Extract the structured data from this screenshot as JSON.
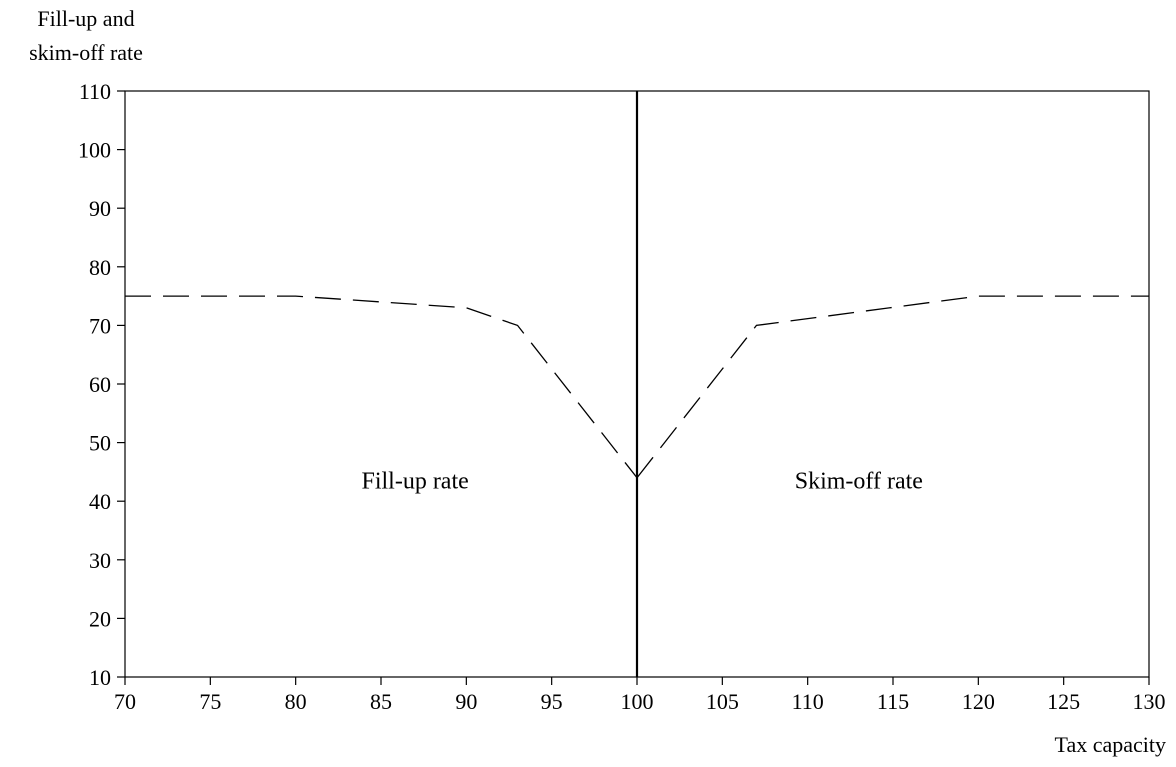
{
  "chart_data": {
    "type": "line",
    "ylabel_line1": "Fill-up and",
    "ylabel_line2": "skim-off  rate",
    "xlabel": "Tax capacity",
    "xlim": [
      70,
      130
    ],
    "ylim": [
      10,
      110
    ],
    "x_ticks": [
      70,
      75,
      80,
      85,
      90,
      95,
      100,
      105,
      110,
      115,
      120,
      125,
      130
    ],
    "y_ticks": [
      10,
      20,
      30,
      40,
      50,
      60,
      70,
      80,
      90,
      100,
      110
    ],
    "vertical_line_x": 100,
    "series": [
      {
        "style": "dashed",
        "x": [
          70,
          80,
          90,
          93,
          100
        ],
        "y": [
          75,
          75,
          73,
          70,
          44
        ]
      },
      {
        "style": "dashed",
        "x": [
          100,
          107,
          120,
          130
        ],
        "y": [
          44,
          70,
          75,
          75
        ]
      }
    ],
    "annotations": [
      {
        "text": "Fill-up rate",
        "x": 87,
        "y": 43.5
      },
      {
        "text": "Skim-off  rate",
        "x": 113,
        "y": 43.5
      }
    ]
  }
}
